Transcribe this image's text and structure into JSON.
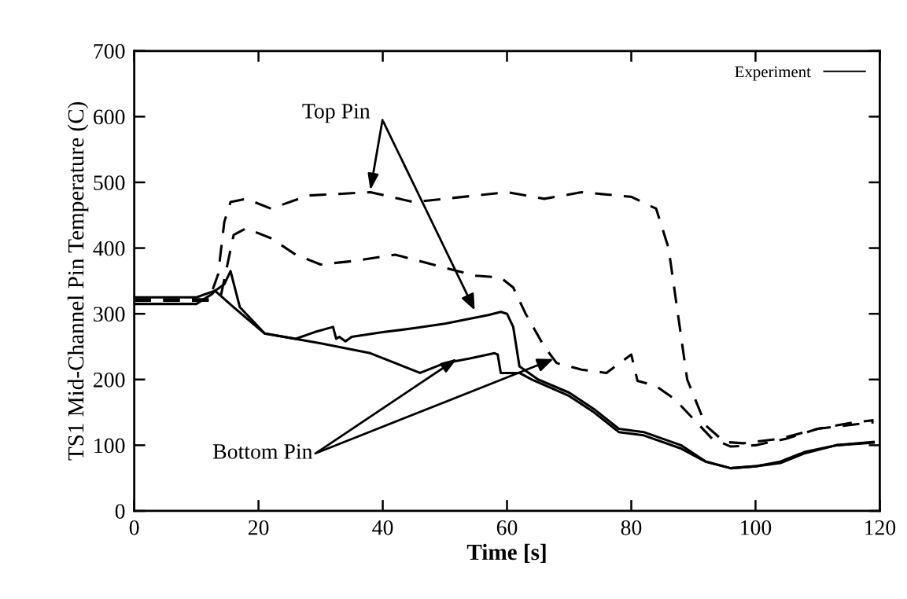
{
  "chart_data": {
    "type": "line",
    "xlabel": "Time [s]",
    "ylabel": "TS1 Mid-Channel Pin Temperature (C)",
    "xlim": [
      0,
      120
    ],
    "xticks": [
      0,
      20,
      40,
      60,
      80,
      100,
      120
    ],
    "ylim": [
      0,
      700
    ],
    "yticks": [
      0,
      100,
      200,
      300,
      400,
      500,
      600,
      700
    ],
    "legend": "top right",
    "grid": false,
    "marker": "none",
    "series": [
      {
        "name": "Experiment",
        "color": "#000000",
        "line_style": "solid",
        "x": [
          0,
          10,
          13,
          14.5,
          15.5,
          17,
          21,
          26,
          29,
          32,
          32.5,
          33,
          34,
          35,
          40,
          45,
          50,
          57,
          59,
          60,
          61,
          62,
          65,
          70,
          74,
          78,
          82,
          88,
          92,
          96,
          100,
          104,
          108,
          113,
          119
        ],
        "values": [
          325,
          325,
          335,
          345,
          365,
          310,
          270,
          262,
          272,
          280,
          262,
          265,
          258,
          265,
          272,
          278,
          285,
          298,
          303,
          300,
          280,
          220,
          200,
          180,
          155,
          125,
          120,
          100,
          75,
          65,
          68,
          75,
          90,
          100,
          105
        ]
      },
      {
        "color": "#000000",
        "line_style": "solid",
        "x": [
          0,
          10,
          12.5,
          13,
          16,
          21,
          30,
          38,
          46,
          50,
          54,
          58,
          58.5,
          59,
          62,
          64,
          70,
          74,
          78,
          82,
          88,
          92,
          96,
          100,
          104,
          108,
          113,
          119
        ],
        "values": [
          315,
          315,
          330,
          335,
          310,
          270,
          255,
          240,
          210,
          225,
          232,
          240,
          238,
          210,
          210,
          200,
          175,
          150,
          120,
          115,
          95,
          75,
          65,
          68,
          73,
          88,
          100,
          104
        ]
      },
      {
        "color": "#000000",
        "line_style": "dashed",
        "x": [
          0,
          12,
          13.5,
          14.5,
          15.5,
          18,
          22,
          28,
          38,
          45,
          55,
          60,
          66,
          72,
          80,
          84,
          86,
          87.5,
          89,
          92,
          95,
          98,
          104,
          110,
          119
        ],
        "values": [
          320,
          320,
          360,
          440,
          470,
          475,
          460,
          480,
          485,
          470,
          480,
          485,
          475,
          485,
          478,
          460,
          400,
          300,
          200,
          130,
          105,
          103,
          110,
          125,
          135
        ]
      },
      {
        "color": "#000000",
        "line_style": "dashed",
        "x": [
          0,
          12,
          14,
          16,
          18,
          22,
          26,
          30,
          35,
          42,
          50,
          55,
          59,
          61,
          63,
          66,
          68,
          72,
          76,
          80,
          81,
          84,
          87,
          90,
          93,
          96,
          100,
          105,
          110,
          116,
          119
        ],
        "values": [
          322,
          322,
          330,
          420,
          430,
          415,
          390,
          375,
          380,
          390,
          370,
          358,
          355,
          340,
          300,
          250,
          225,
          215,
          210,
          238,
          198,
          190,
          170,
          140,
          110,
          98,
          100,
          110,
          125,
          135,
          138
        ]
      }
    ],
    "annotations": [
      {
        "text": "Top Pin",
        "x": 38,
        "y": 488
      },
      {
        "text": "Bottom Pin",
        "x": 52,
        "y": 232
      }
    ]
  }
}
